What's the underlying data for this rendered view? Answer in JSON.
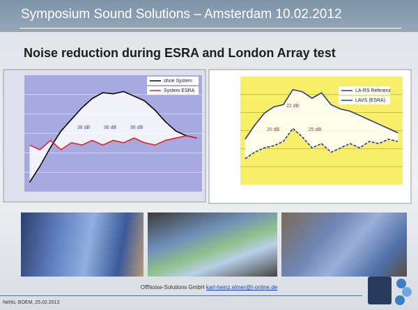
{
  "header": {
    "title": "Symposium Sound Solutions – Amsterdam 10.02.2012"
  },
  "heading": "Noise reduction during ESRA and London Array test",
  "charts": [
    {
      "type": "line",
      "ylim": [
        0,
        100
      ],
      "series": [
        {
          "name": "ohne System",
          "color": "#000000",
          "values": [
            8,
            22,
            38,
            52,
            62,
            72,
            80,
            85,
            84,
            86,
            82,
            78,
            70,
            60,
            52,
            48,
            46
          ]
        },
        {
          "name": "System ESRA",
          "color": "#e0202a",
          "values": [
            40,
            36,
            44,
            36,
            42,
            40,
            44,
            40,
            44,
            42,
            46,
            42,
            40,
            44,
            46,
            48,
            46
          ]
        }
      ],
      "annotations": [
        "36 dB",
        "36 dB",
        "36 dB"
      ]
    },
    {
      "type": "line",
      "ylim": [
        0,
        100
      ],
      "series": [
        {
          "name": "LA-RS Referenz",
          "color": "#2a3a8c",
          "values": [
            42,
            55,
            66,
            72,
            74,
            88,
            86,
            80,
            85,
            74,
            70,
            68,
            64,
            60,
            56,
            52,
            48
          ]
        },
        {
          "name": "LAVS (ESRA)",
          "color": "#2a3a8c",
          "values": [
            24,
            30,
            34,
            36,
            40,
            52,
            44,
            34,
            38,
            30,
            34,
            38,
            34,
            40,
            38,
            42,
            40
          ]
        }
      ],
      "annotations": [
        "22 dB",
        "20 dB",
        "25 dB"
      ]
    }
  ],
  "footer": {
    "company": "OffNoise-Solutions GmbH",
    "email": "karl-heinz.elmer@t-online.de",
    "left": "Nehls, BOEM, 25.02.2013"
  }
}
